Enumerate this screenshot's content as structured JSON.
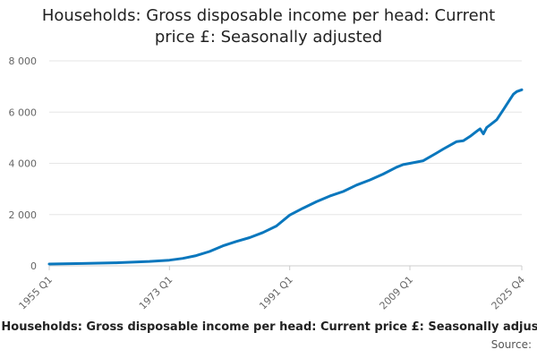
{
  "title": {
    "line1": "Households: Gross disposable income per head: Current",
    "line2": "price £: Seasonally adjusted"
  },
  "legend": {
    "marker": "-",
    "label": "Households: Gross disposable income per head: Current price £: Seasonally adjusted"
  },
  "source_label": "Source:",
  "colors": {
    "series": "#0a77bd",
    "grid": "#e6e6e6",
    "tick_text": "#666666"
  },
  "chart_data": {
    "type": "line",
    "title": "Households: Gross disposable income per head: Current price £: Seasonally adjusted",
    "xlabel": "",
    "ylabel": "",
    "grid": true,
    "legend_position": "bottom",
    "ylim": [
      0,
      8000
    ],
    "y_ticks": [
      0,
      2000,
      4000,
      6000,
      8000
    ],
    "y_tick_labels": [
      "0",
      "2 000",
      "4 000",
      "6 000",
      "8 000"
    ],
    "x_tick_labels": [
      "1955 Q1",
      "1973 Q1",
      "1991 Q1",
      "2009 Q1",
      "2025 Q4"
    ],
    "series": [
      {
        "name": "Households: Gross disposable income per head: Current price £: Seasonally adjusted",
        "x": [
          "1955 Q1",
          "1960 Q1",
          "1965 Q1",
          "1970 Q1",
          "1973 Q1",
          "1975 Q1",
          "1977 Q1",
          "1979 Q1",
          "1981 Q1",
          "1983 Q1",
          "1985 Q1",
          "1987 Q1",
          "1989 Q1",
          "1991 Q1",
          "1993 Q1",
          "1995 Q1",
          "1997 Q1",
          "1999 Q1",
          "2001 Q1",
          "2003 Q1",
          "2005 Q1",
          "2007 Q1",
          "2008 Q1",
          "2009 Q1",
          "2011 Q1",
          "2013 Q1",
          "2014 Q1",
          "2016 Q1",
          "2017 Q1",
          "2018 Q1",
          "2019 Q1",
          "2019 Q3",
          "2020 Q1",
          "2020 Q3",
          "2021 Q1",
          "2022 Q1",
          "2023 Q1",
          "2023 Q3",
          "2024 Q1",
          "2024 Q3",
          "2025 Q1",
          "2025 Q4"
        ],
        "values": [
          70,
          90,
          120,
          170,
          220,
          290,
          400,
          560,
          780,
          950,
          1100,
          1300,
          1550,
          1980,
          2250,
          2500,
          2720,
          2900,
          3150,
          3350,
          3580,
          3850,
          3950,
          4000,
          4100,
          4400,
          4560,
          4850,
          4880,
          5050,
          5250,
          5350,
          5150,
          5400,
          5500,
          5700,
          6100,
          6300,
          6500,
          6700,
          6800,
          6870
        ]
      }
    ]
  }
}
